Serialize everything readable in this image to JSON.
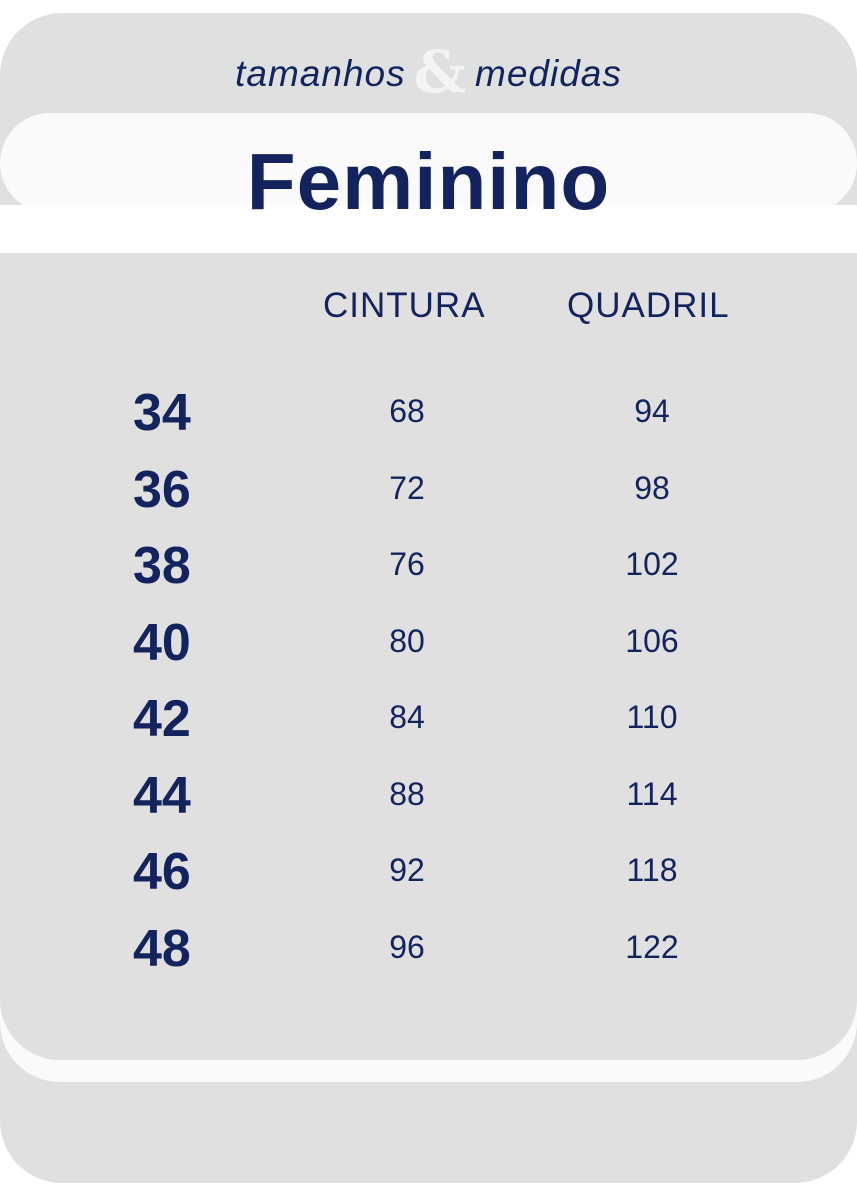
{
  "header": {
    "subtitle_left": "tamanhos",
    "subtitle_amp": "&",
    "subtitle_right": "medidas",
    "title": "Feminino"
  },
  "colors": {
    "text": "#13235e",
    "panel": "#dfe0e0",
    "band": "#fafafa"
  },
  "table": {
    "columns": [
      "CINTURA",
      "QUADRIL"
    ],
    "rows": [
      {
        "size": "34",
        "cintura": "68",
        "quadril": "94"
      },
      {
        "size": "36",
        "cintura": "72",
        "quadril": "98"
      },
      {
        "size": "38",
        "cintura": "76",
        "quadril": "102"
      },
      {
        "size": "40",
        "cintura": "80",
        "quadril": "106"
      },
      {
        "size": "42",
        "cintura": "84",
        "quadril": "110"
      },
      {
        "size": "44",
        "cintura": "88",
        "quadril": "114"
      },
      {
        "size": "46",
        "cintura": "92",
        "quadril": "118"
      },
      {
        "size": "48",
        "cintura": "96",
        "quadril": "122"
      }
    ]
  }
}
